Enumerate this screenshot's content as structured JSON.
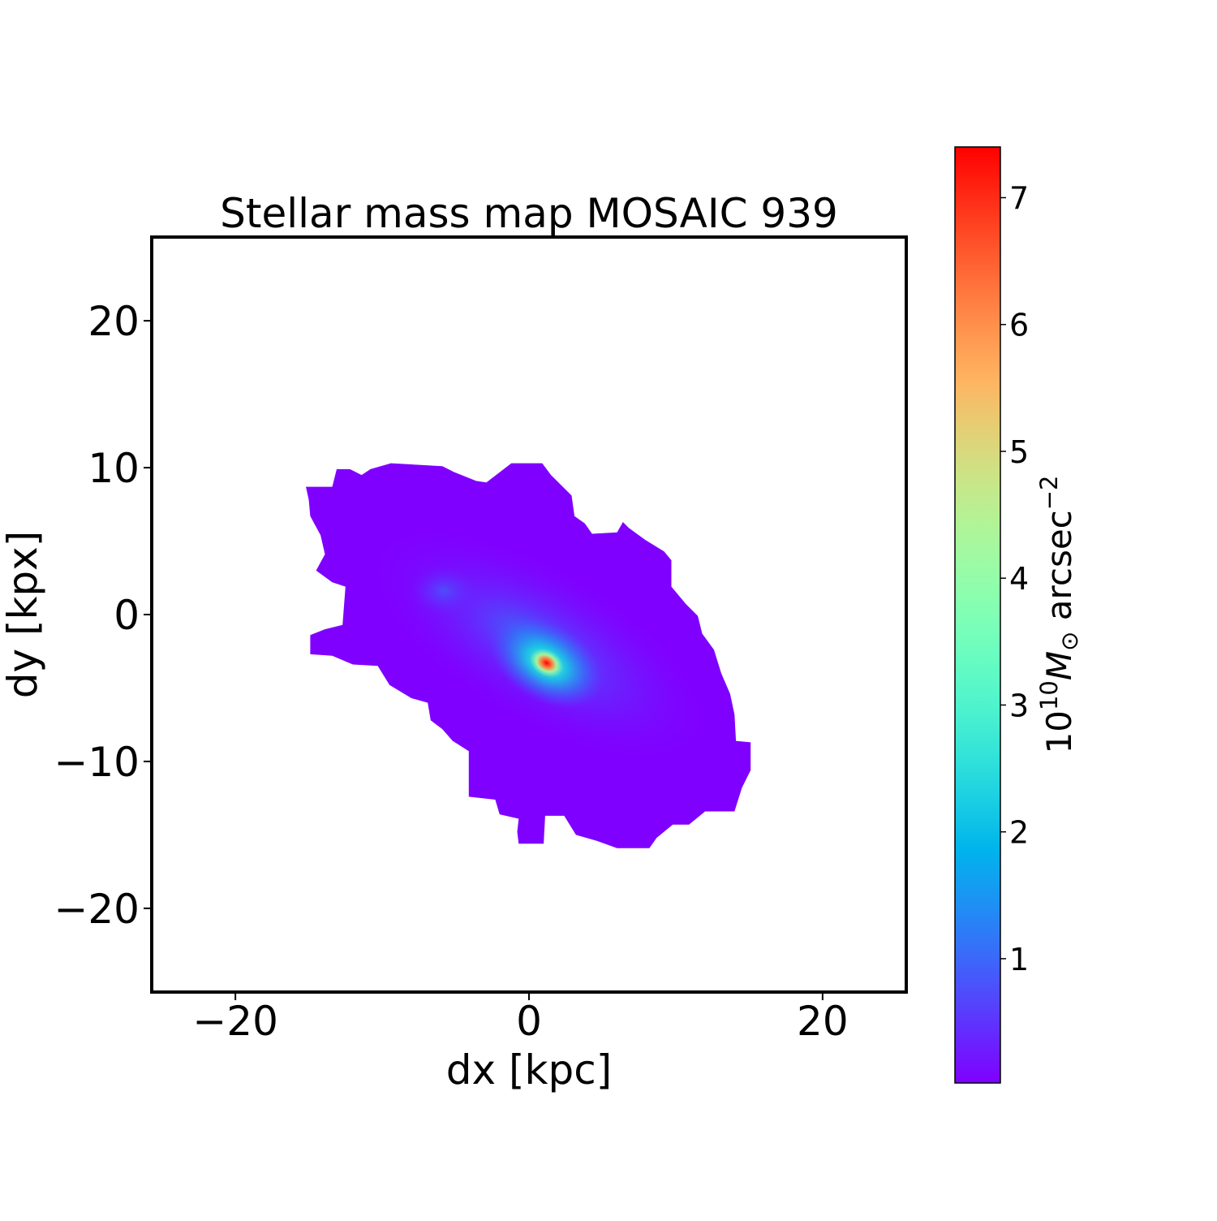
{
  "chart_data": {
    "type": "heatmap",
    "title": "Stellar mass map MOSAIC 939",
    "xlabel": "dx [kpc]",
    "ylabel": "dy [kpx]",
    "xlim": [
      -25.7,
      25.7
    ],
    "ylim": [
      -25.7,
      25.7
    ],
    "xticks": [
      -20,
      0,
      20
    ],
    "yticks": [
      -20,
      -10,
      0,
      10,
      20
    ],
    "xtick_labels": [
      "−20",
      "0",
      "20"
    ],
    "ytick_labels": [
      "−20",
      "−10",
      "0",
      "10",
      "20"
    ],
    "colormap": "rainbow",
    "colorbar": {
      "label_prefix": "10",
      "label_exp": "10",
      "label_symbol": "M",
      "label_sub": "⊙",
      "label_unit": " arcsec",
      "label_unit_exp": "−2",
      "range": [
        0.02,
        7.4
      ],
      "ticks": [
        1,
        2,
        3,
        4,
        5,
        6,
        7
      ],
      "tick_labels": [
        "1",
        "2",
        "3",
        "4",
        "5",
        "6",
        "7"
      ]
    },
    "grid": false,
    "background_value": 0.02,
    "peak": {
      "x": 1.2,
      "y": -3.3,
      "value": 7.4
    },
    "secondary_peak": {
      "x": -5.8,
      "y": 1.6,
      "value": 0.8
    },
    "major_axis_angle_deg": -30,
    "outline_kpc": [
      [
        -15.2,
        8.7
      ],
      [
        -13.4,
        8.7
      ],
      [
        -13.1,
        9.9
      ],
      [
        -12.2,
        9.9
      ],
      [
        -11.4,
        9.5
      ],
      [
        -10.8,
        9.9
      ],
      [
        -9.4,
        10.3
      ],
      [
        -5.9,
        10.1
      ],
      [
        -5.1,
        9.7
      ],
      [
        -3.6,
        9.1
      ],
      [
        -2.9,
        9.0
      ],
      [
        -1.2,
        10.3
      ],
      [
        0.9,
        10.3
      ],
      [
        1.5,
        9.5
      ],
      [
        2.9,
        8.1
      ],
      [
        3.1,
        6.7
      ],
      [
        3.8,
        6.2
      ],
      [
        4.3,
        5.5
      ],
      [
        6.0,
        5.6
      ],
      [
        6.4,
        6.3
      ],
      [
        6.8,
        5.9
      ],
      [
        7.9,
        5.1
      ],
      [
        9.2,
        4.3
      ],
      [
        9.7,
        3.7
      ],
      [
        9.7,
        1.9
      ],
      [
        10.7,
        0.7
      ],
      [
        11.5,
        -0.1
      ],
      [
        11.8,
        -1.3
      ],
      [
        12.6,
        -2.4
      ],
      [
        13.1,
        -4.0
      ],
      [
        13.7,
        -5.4
      ],
      [
        14.0,
        -6.8
      ],
      [
        14.1,
        -8.6
      ],
      [
        15.1,
        -8.7
      ],
      [
        15.1,
        -10.6
      ],
      [
        14.5,
        -11.8
      ],
      [
        14.0,
        -13.4
      ],
      [
        12.0,
        -13.4
      ],
      [
        10.9,
        -14.3
      ],
      [
        9.8,
        -14.3
      ],
      [
        8.7,
        -15.2
      ],
      [
        8.2,
        -15.9
      ],
      [
        6.0,
        -15.9
      ],
      [
        4.6,
        -15.4
      ],
      [
        3.2,
        -15.0
      ],
      [
        2.4,
        -13.7
      ],
      [
        1.1,
        -13.7
      ],
      [
        1.0,
        -15.6
      ],
      [
        -0.7,
        -15.6
      ],
      [
        -0.8,
        -14.8
      ],
      [
        -0.7,
        -13.9
      ],
      [
        -2.0,
        -13.6
      ],
      [
        -2.3,
        -12.6
      ],
      [
        -4.1,
        -12.4
      ],
      [
        -4.1,
        -9.3
      ],
      [
        -5.2,
        -8.6
      ],
      [
        -5.9,
        -7.8
      ],
      [
        -6.7,
        -7.2
      ],
      [
        -6.9,
        -6.0
      ],
      [
        -8.0,
        -5.7
      ],
      [
        -9.5,
        -4.8
      ],
      [
        -10.3,
        -3.5
      ],
      [
        -12.0,
        -3.4
      ],
      [
        -13.4,
        -2.8
      ],
      [
        -14.9,
        -2.7
      ],
      [
        -14.9,
        -1.4
      ],
      [
        -13.9,
        -1.0
      ],
      [
        -12.7,
        -0.7
      ],
      [
        -12.5,
        1.9
      ],
      [
        -13.4,
        2.2
      ],
      [
        -14.5,
        3.0
      ],
      [
        -13.9,
        4.1
      ],
      [
        -14.2,
        5.4
      ],
      [
        -14.9,
        6.7
      ],
      [
        -15.0,
        7.8
      ]
    ]
  }
}
